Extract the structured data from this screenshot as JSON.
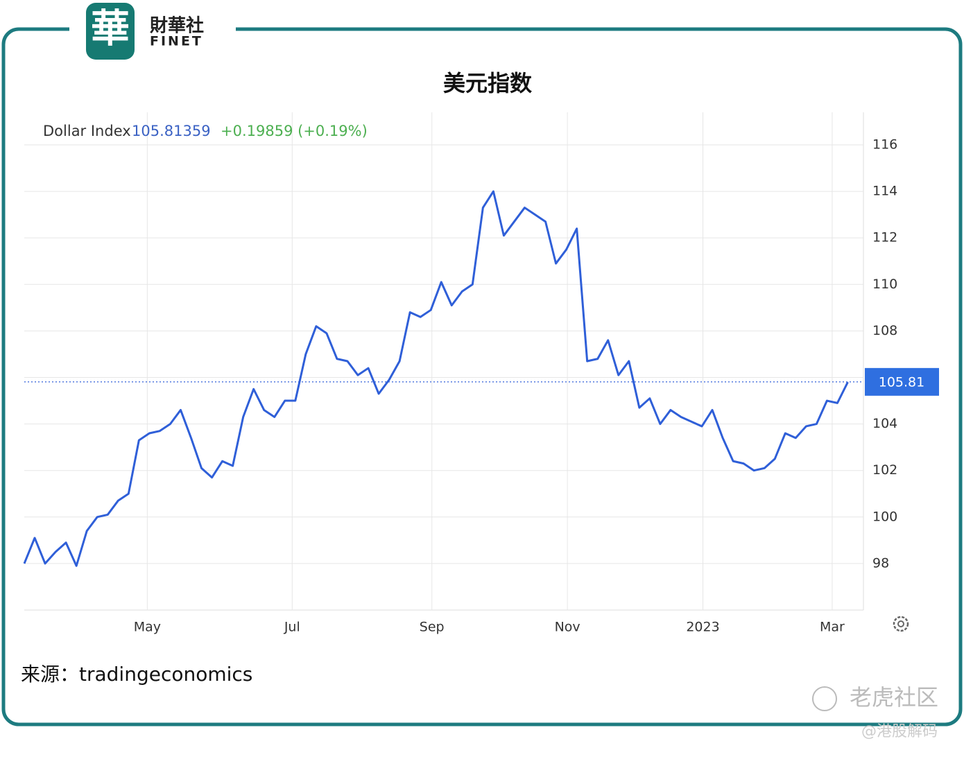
{
  "logo": {
    "mark": "華",
    "name": "財華社",
    "latin": "FINET"
  },
  "watermarks": [
    "老虎社区",
    "@港股解码"
  ],
  "source": "来源：tradingeconomics",
  "chart_data": {
    "type": "line",
    "title": "美元指数",
    "series_name": "Dollar Index",
    "last_price": 105.81359,
    "change": "+0.19859 (+0.19%)",
    "last_value": 105.81,
    "color": "#2f5fd8",
    "values": [
      98.0,
      99.1,
      98.0,
      98.5,
      98.9,
      97.9,
      99.4,
      100.0,
      100.1,
      100.7,
      101.0,
      103.3,
      103.6,
      103.7,
      104.0,
      104.6,
      103.4,
      102.1,
      101.7,
      102.4,
      102.2,
      104.3,
      105.5,
      104.6,
      104.3,
      105.0,
      105.0,
      107.0,
      108.2,
      107.9,
      106.8,
      106.7,
      106.1,
      106.4,
      105.3,
      105.9,
      106.7,
      108.8,
      108.6,
      108.9,
      110.1,
      109.1,
      109.7,
      110.0,
      113.3,
      114.0,
      112.1,
      112.7,
      113.3,
      113.0,
      112.7,
      110.9,
      111.5,
      112.4,
      106.7,
      106.8,
      107.6,
      106.1,
      106.7,
      104.7,
      105.1,
      104.0,
      104.6,
      104.3,
      104.1,
      103.9,
      104.6,
      103.4,
      102.4,
      102.3,
      102.0,
      102.1,
      102.5,
      103.6,
      103.4,
      103.9,
      104.0,
      105.0,
      104.9,
      105.8
    ],
    "xlim": [
      0,
      80.5
    ],
    "xticks": [
      {
        "value": 11.8,
        "label": "May"
      },
      {
        "value": 25.7,
        "label": "Jul"
      },
      {
        "value": 39.1,
        "label": "Sep"
      },
      {
        "value": 52.1,
        "label": "Nov"
      },
      {
        "value": 65.1,
        "label": "2023"
      },
      {
        "value": 77.5,
        "label": "Mar"
      }
    ],
    "ylim": [
      96,
      117.4
    ],
    "yticks": [
      98,
      100,
      102,
      104,
      106,
      108,
      110,
      112,
      114,
      116
    ],
    "grid": true
  }
}
